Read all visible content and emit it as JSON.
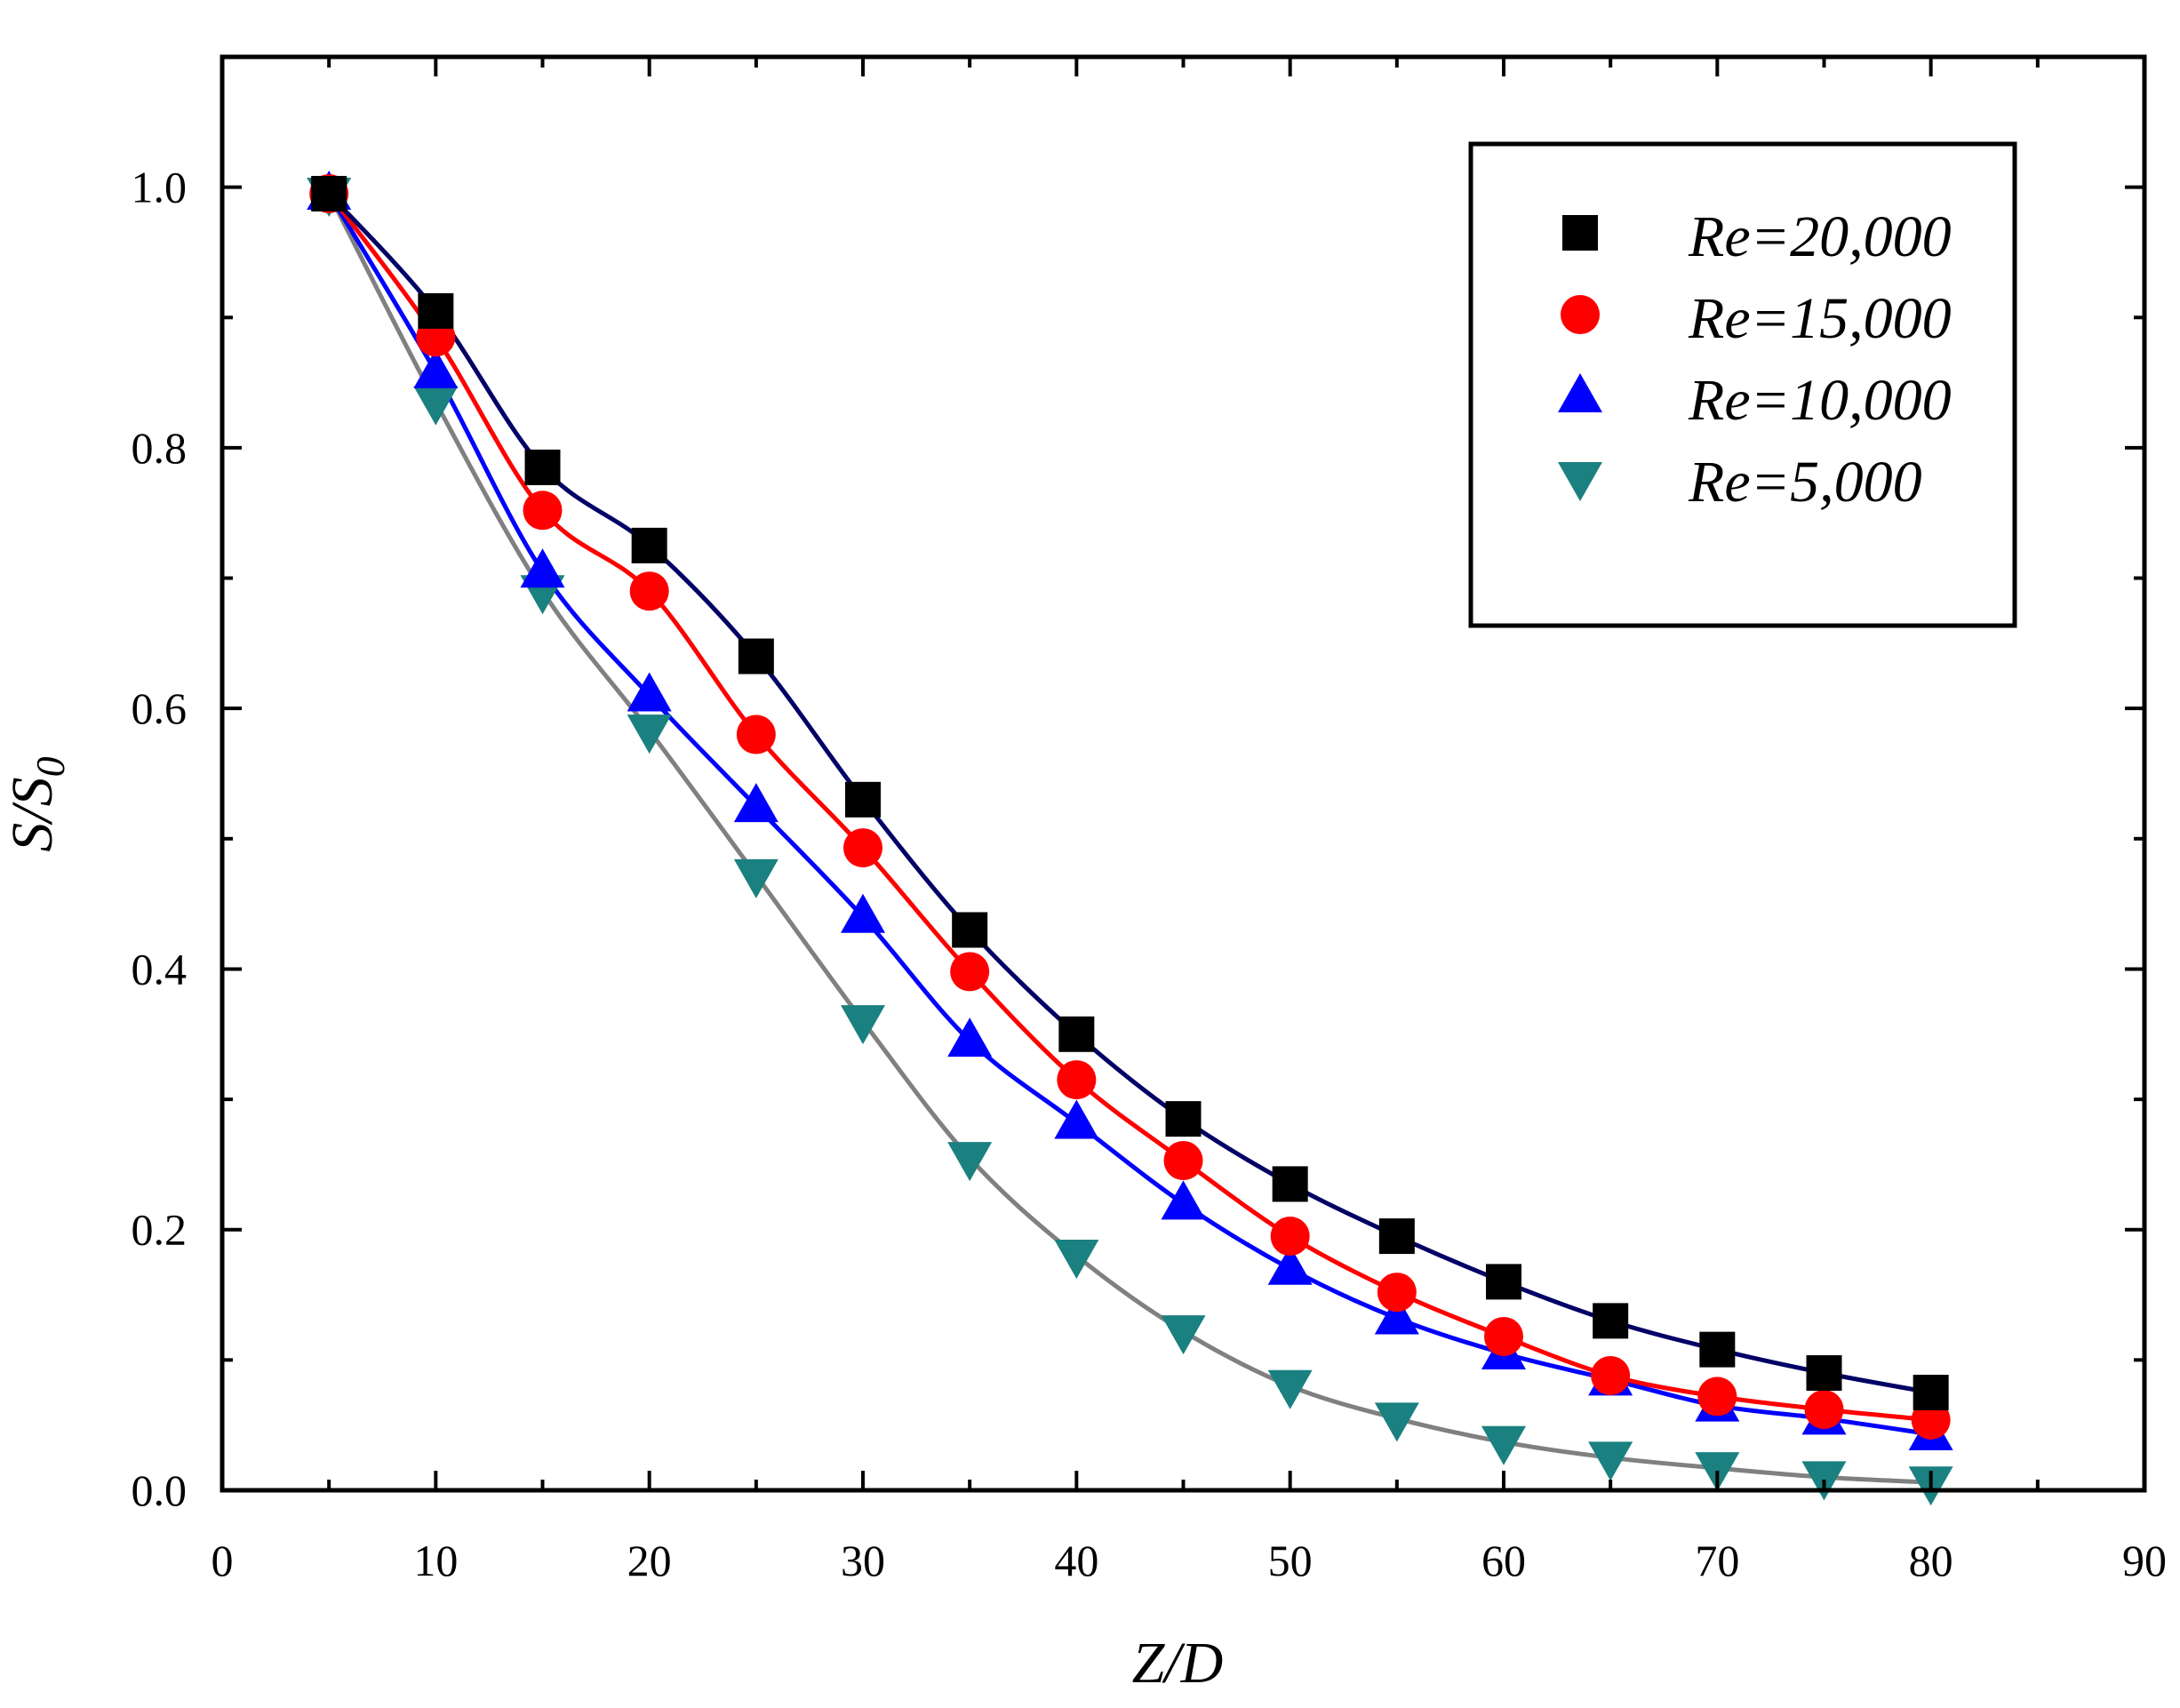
{
  "chart_data": {
    "type": "line",
    "title": "",
    "xlabel": "Z/D",
    "ylabel": "S/S0",
    "ylabel_main": "S/S",
    "ylabel_sub": "0",
    "xlim": [
      0,
      90
    ],
    "ylim": [
      0,
      1.1
    ],
    "xticks": [
      0,
      10,
      20,
      30,
      40,
      50,
      60,
      70,
      80,
      90
    ],
    "xtick_labels": [
      "0",
      "10",
      "20",
      "30",
      "40",
      "50",
      "60",
      "70",
      "80",
      "90"
    ],
    "yticks": [
      0.0,
      0.2,
      0.4,
      0.6,
      0.8,
      1.0
    ],
    "ytick_labels": [
      "0.0",
      "0.2",
      "0.4",
      "0.6",
      "0.8",
      "1.0"
    ],
    "grid": false,
    "legend_position": "top-right",
    "x": [
      5,
      10,
      15,
      20,
      25,
      30,
      35,
      40,
      45,
      50,
      55,
      60,
      65,
      70,
      75,
      80
    ],
    "series": [
      {
        "name": "Re=20,000",
        "marker": "square",
        "marker_color": "#000000",
        "line_color": "#000066",
        "values": [
          0.995,
          0.905,
          0.785,
          0.725,
          0.64,
          0.53,
          0.43,
          0.35,
          0.285,
          0.235,
          0.195,
          0.16,
          0.13,
          0.108,
          0.09,
          0.075
        ]
      },
      {
        "name": "Re=15,000",
        "marker": "circle",
        "marker_color": "#ff0000",
        "line_color": "#ff0000",
        "values": [
          0.995,
          0.885,
          0.752,
          0.69,
          0.58,
          0.493,
          0.398,
          0.315,
          0.253,
          0.195,
          0.152,
          0.118,
          0.088,
          0.072,
          0.062,
          0.054
        ]
      },
      {
        "name": "Re=10,000",
        "marker": "triangle-up",
        "marker_color": "#0000ff",
        "line_color": "#0000ff",
        "values": [
          0.995,
          0.858,
          0.705,
          0.61,
          0.525,
          0.44,
          0.345,
          0.282,
          0.22,
          0.17,
          0.132,
          0.105,
          0.085,
          0.065,
          0.055,
          0.043
        ]
      },
      {
        "name": "Re=5,000",
        "marker": "triangle-down",
        "marker_color": "#1a8080",
        "line_color": "#808080",
        "values": [
          0.995,
          0.835,
          0.69,
          0.583,
          0.472,
          0.36,
          0.255,
          0.18,
          0.122,
          0.08,
          0.055,
          0.037,
          0.025,
          0.017,
          0.01,
          0.006
        ]
      }
    ]
  }
}
